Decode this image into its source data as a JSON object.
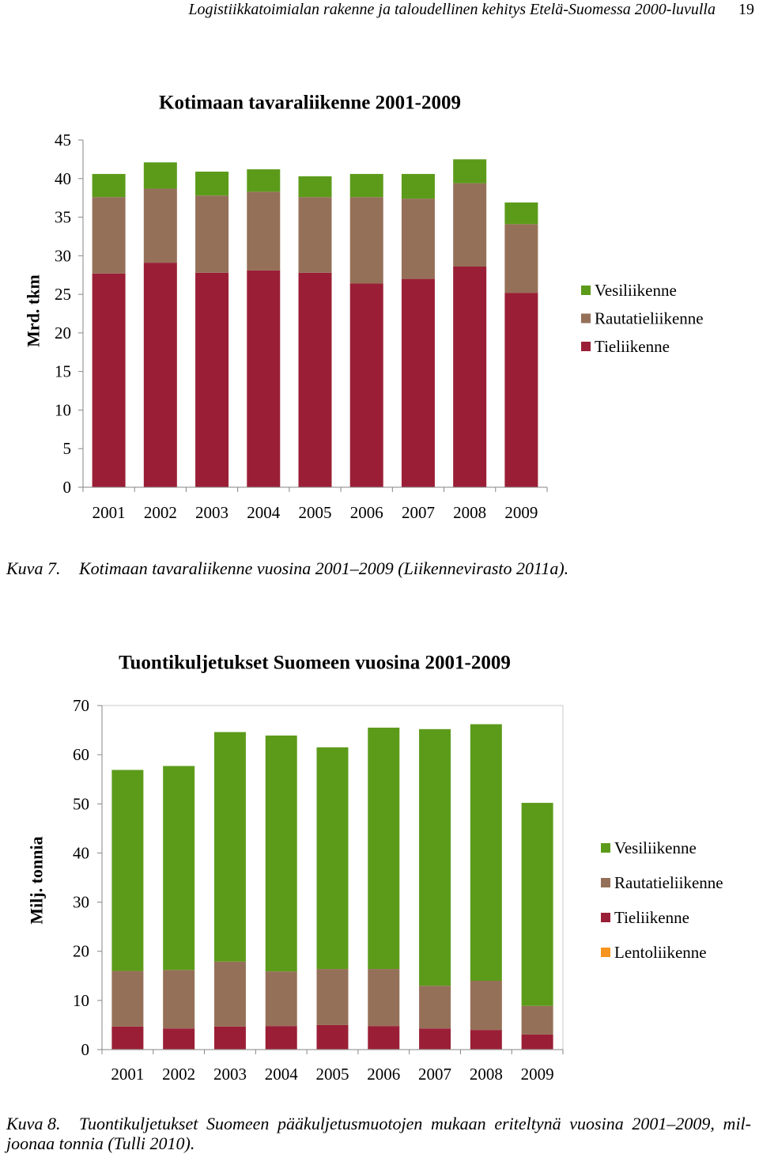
{
  "header": {
    "title": "Logistiikkatoimialan rakenne ja taloudellinen kehitys Etelä-Suomessa 2000-luvulla",
    "page_number": "19"
  },
  "figures": [
    {
      "label": "Kuva 7.",
      "caption": "Kotimaan tavaraliikenne vuosina 2001–2009 (Liikennevirasto 2011a)."
    },
    {
      "label": "Kuva 8.",
      "caption_line1": "Tuontikuljetukset Suomeen pääkuljetusmuotojen mukaan eriteltynä vuosina 2001–2009, mil-",
      "caption_line2": "joonaa tonnia (Tulli 2010)."
    }
  ],
  "chart_data": [
    {
      "type": "bar",
      "stacked": true,
      "title": "Kotimaan tavaraliikenne 2001-2009",
      "ylabel": "Mrd. tkm",
      "ylim": [
        0,
        45
      ],
      "yticks": [
        0,
        5,
        10,
        15,
        20,
        25,
        30,
        35,
        40,
        45
      ],
      "categories": [
        "2001",
        "2002",
        "2003",
        "2004",
        "2005",
        "2006",
        "2007",
        "2008",
        "2009"
      ],
      "series": [
        {
          "name": "Tieliikenne",
          "color": "#9A1F36",
          "values": [
            27.7,
            29.1,
            27.8,
            28.1,
            27.8,
            26.4,
            27.0,
            28.6,
            25.2
          ]
        },
        {
          "name": "Rautatieliikenne",
          "color": "#957058",
          "values": [
            9.9,
            9.6,
            10.0,
            10.2,
            9.8,
            11.2,
            10.4,
            10.8,
            8.9
          ]
        },
        {
          "name": "Vesiliikenne",
          "color": "#5C9B1A",
          "values": [
            3.0,
            3.4,
            3.1,
            2.9,
            2.7,
            3.0,
            3.2,
            3.1,
            2.8
          ]
        }
      ],
      "legend": "right",
      "grid": false
    },
    {
      "type": "bar",
      "stacked": true,
      "title": "Tuontikuljetukset Suomeen vuosina 2001-2009",
      "ylabel": "Milj. tonnia",
      "ylim": [
        0,
        70
      ],
      "yticks": [
        0,
        10,
        20,
        30,
        40,
        50,
        60,
        70
      ],
      "categories": [
        "2001",
        "2002",
        "2003",
        "2004",
        "2005",
        "2006",
        "2007",
        "2008",
        "2009"
      ],
      "series": [
        {
          "name": "Lentoliikenne",
          "color": "#F7941D",
          "values": [
            0.1,
            0.1,
            0.1,
            0.1,
            0.1,
            0.1,
            0.1,
            0.1,
            0.1
          ]
        },
        {
          "name": "Tieliikenne",
          "color": "#9A1F36",
          "values": [
            4.6,
            4.2,
            4.6,
            4.7,
            4.9,
            4.7,
            4.2,
            3.9,
            3.0
          ]
        },
        {
          "name": "Rautatieliikenne",
          "color": "#957058",
          "values": [
            11.3,
            11.9,
            13.2,
            11.1,
            11.4,
            11.6,
            8.7,
            10.0,
            5.8
          ]
        },
        {
          "name": "Vesiliikenne",
          "color": "#5C9B1A",
          "values": [
            40.9,
            41.5,
            46.7,
            48.0,
            45.1,
            49.1,
            52.2,
            52.2,
            41.3
          ]
        }
      ],
      "legend": "right",
      "grid": false
    }
  ]
}
